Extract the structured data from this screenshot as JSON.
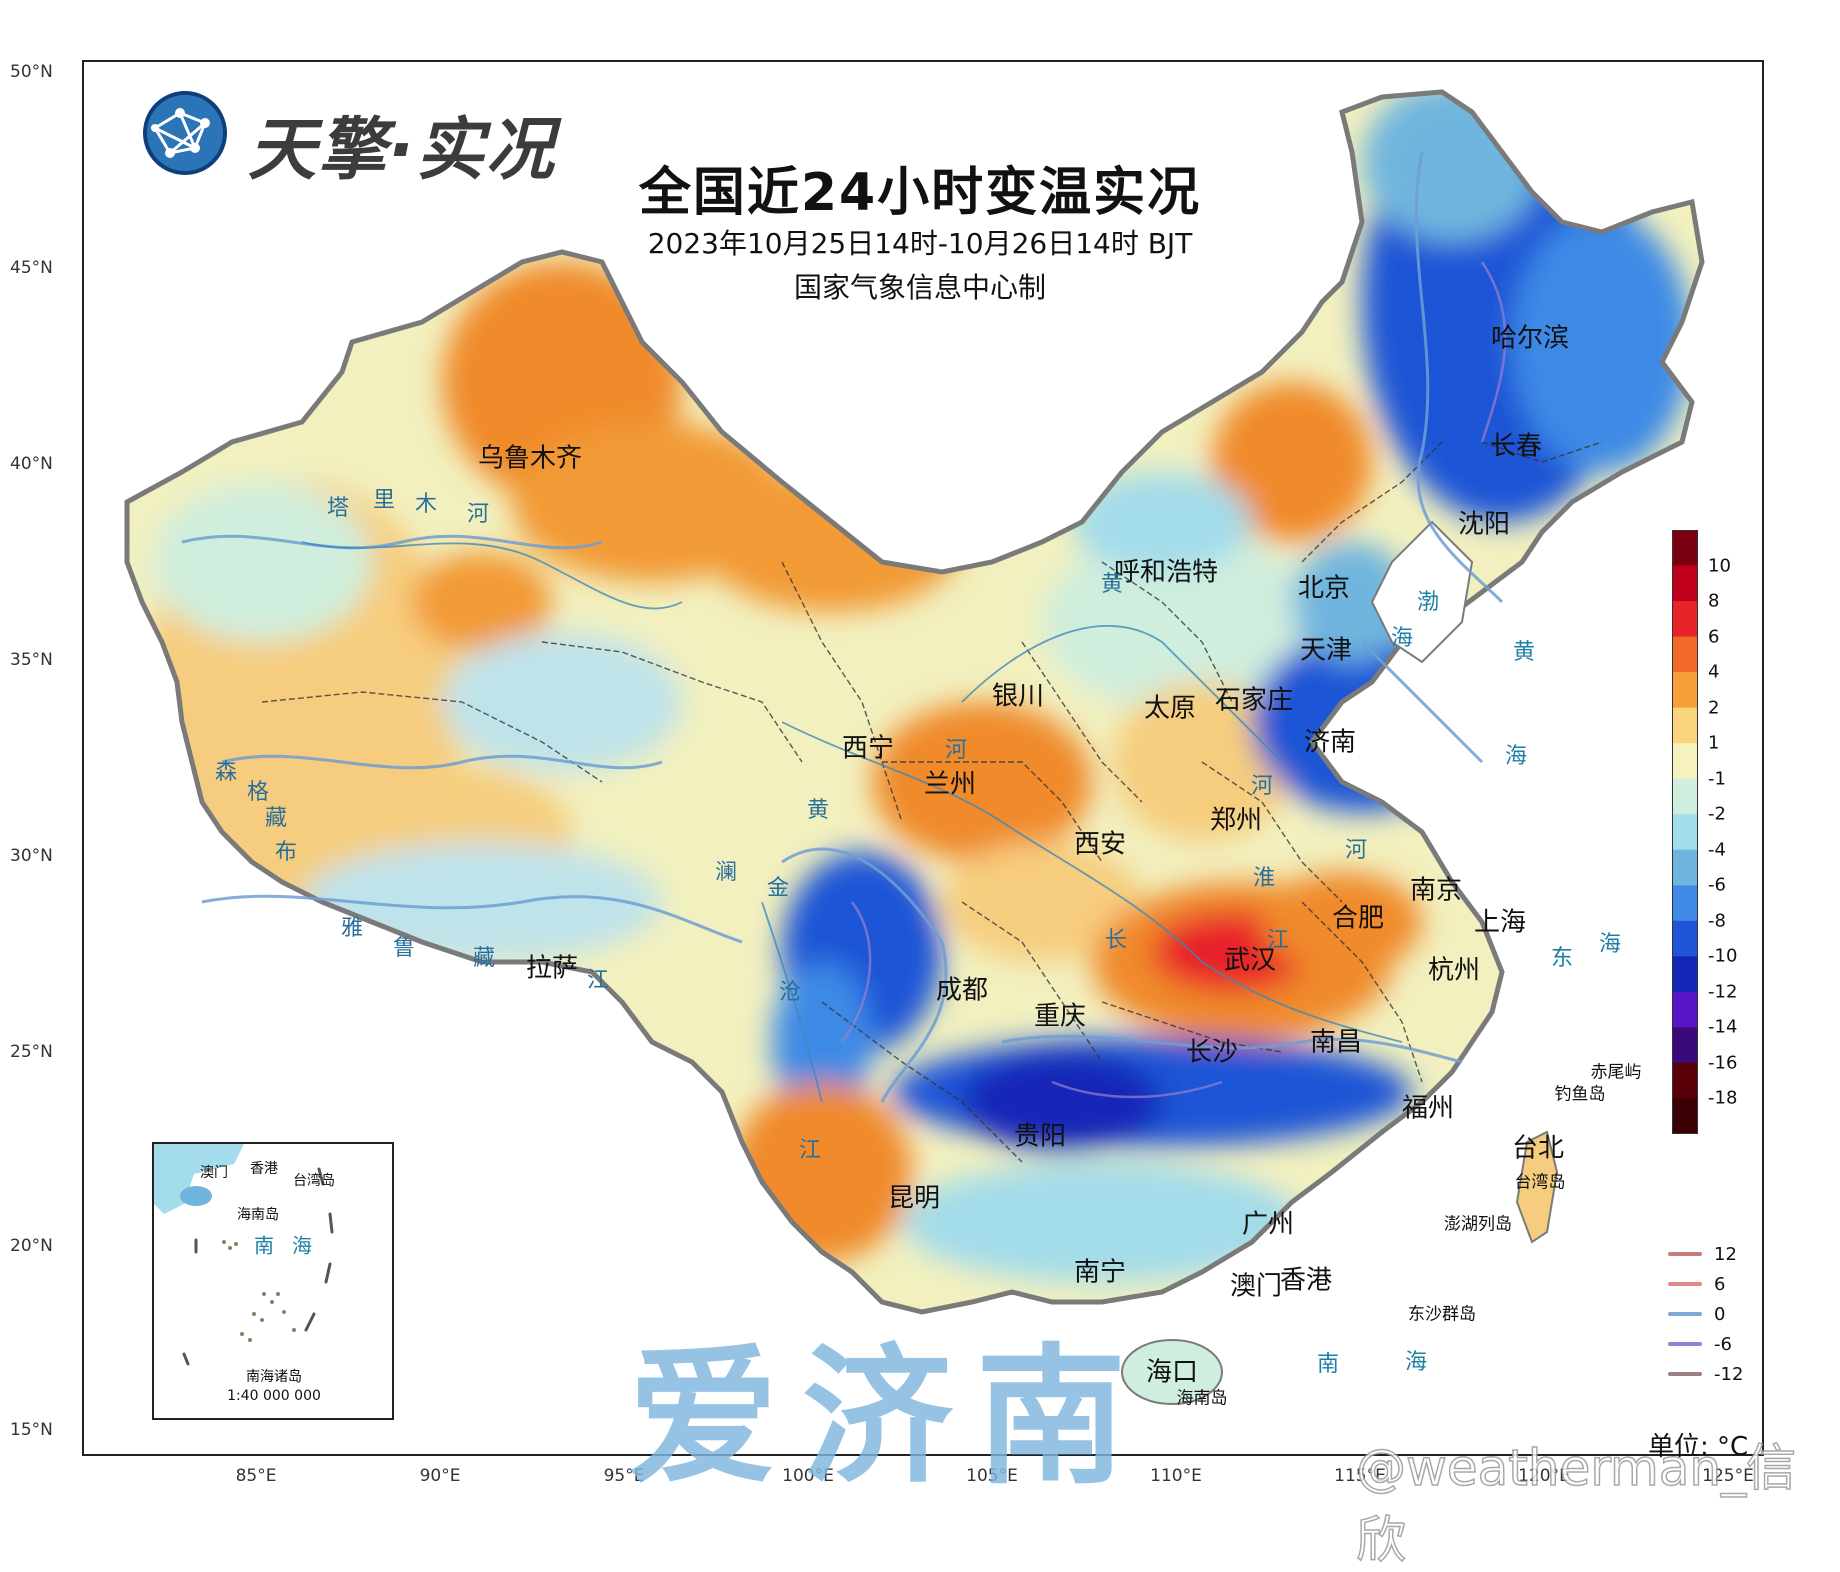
{
  "logo": {
    "text": "天擎·实况",
    "icon": "globe-network-icon"
  },
  "title": "全国近24小时变温实况",
  "time_range": "2023年10月25日14时-10月26日14时 BJT",
  "producer": "国家气象信息中心制",
  "lat_labels": [
    "50°N",
    "45°N",
    "40°N",
    "35°N",
    "30°N",
    "25°N",
    "20°N",
    "15°N"
  ],
  "lon_labels": [
    "85°E",
    "90°E",
    "95°E",
    "100°E",
    "105°E",
    "110°E",
    "115°E",
    "120°E",
    "125°E"
  ],
  "cities": [
    "乌鲁木齐",
    "呼和浩特",
    "北京",
    "天津",
    "石家庄",
    "太原",
    "济南",
    "银川",
    "西宁",
    "兰州",
    "郑州",
    "西安",
    "南京",
    "合肥",
    "上海",
    "武汉",
    "杭州",
    "成都",
    "重庆",
    "长沙",
    "南昌",
    "拉萨",
    "贵阳",
    "福州",
    "昆明",
    "广州",
    "南宁",
    "澳门",
    "香港",
    "海口",
    "台北",
    "哈尔滨",
    "长春",
    "沈阳"
  ],
  "seas": [
    "渤",
    "海",
    "黄",
    "海",
    "东",
    "海",
    "南",
    "海"
  ],
  "rivers": [
    "塔",
    "里",
    "木",
    "河",
    "黄",
    "河",
    "长",
    "江",
    "黄",
    "河",
    "澜",
    "沧",
    "江",
    "金",
    "森",
    "格",
    "藏",
    "布",
    "雅",
    "鲁",
    "藏",
    "江",
    "淮",
    "河"
  ],
  "islands": [
    "赤尾屿",
    "钓鱼岛",
    "台湾岛",
    "澎湖列岛",
    "东沙群岛",
    "海南岛"
  ],
  "inset": {
    "labels": [
      "澳门",
      "香港",
      "台湾岛",
      "海南岛",
      "南",
      "海",
      "南海诸岛"
    ],
    "scale": "1:40 000 000"
  },
  "colorbar": {
    "labels": [
      "10",
      "8",
      "6",
      "4",
      "2",
      "1",
      "-1",
      "-2",
      "-4",
      "-6",
      "-8",
      "-10",
      "-12",
      "-14",
      "-16",
      "-18"
    ],
    "colors": [
      "#7a0010",
      "#c0001b",
      "#e8232a",
      "#f26a2a",
      "#f7a03a",
      "#fbd47e",
      "#f5f2bf",
      "#cfeedd",
      "#a3dcea",
      "#6fb5de",
      "#3e8ae6",
      "#1f55d6",
      "#1426b8",
      "#5a14c8",
      "#3a0a7a",
      "#5a0008",
      "#3a0004"
    ]
  },
  "isolines": [
    {
      "label": "12",
      "color": "#c77c7c"
    },
    {
      "label": "6",
      "color": "#e28a8a"
    },
    {
      "label": "0",
      "color": "#7ea8d6"
    },
    {
      "label": "-6",
      "color": "#9a7fd0"
    },
    {
      "label": "-12",
      "color": "#9a8080"
    }
  ],
  "unit": "单位: °C",
  "watermark": "爱济南",
  "credit": "@weatherman_信欣"
}
